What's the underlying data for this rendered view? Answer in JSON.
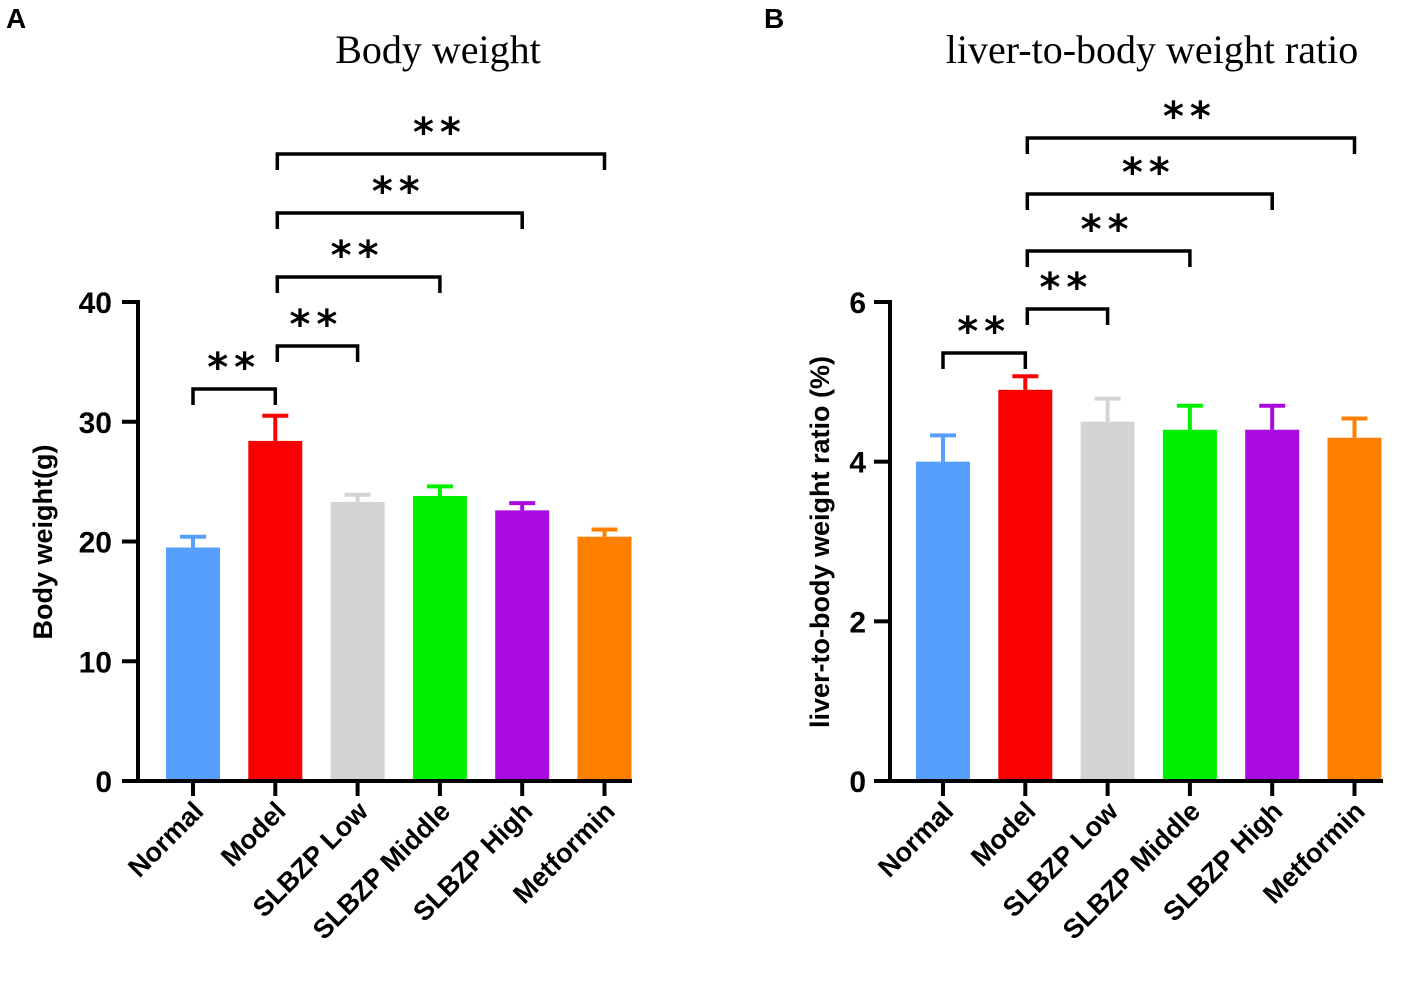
{
  "colors": {
    "Normal": "#569ffd",
    "Model": "#fa0000",
    "SLBZP Low": "#d4d4d4",
    "SLBZP Middle": "#00f000",
    "SLBZP High": "#a90add",
    "Metformin": "#ff8000"
  },
  "chart_data": [
    {
      "panel": "A",
      "type": "bar",
      "title": "Body weight",
      "xlabel": "",
      "ylabel": "Body weight(g)",
      "ylim": [
        0,
        40
      ],
      "yticks": [
        0,
        10,
        20,
        30,
        40
      ],
      "categories": [
        "Normal",
        "Model",
        "SLBZP Low",
        "SLBZP Middle",
        "SLBZP High",
        "Metformin"
      ],
      "values": [
        19.5,
        28.4,
        23.3,
        23.8,
        22.6,
        20.4
      ],
      "errors": [
        0.9,
        2.1,
        0.6,
        0.8,
        0.6,
        0.6
      ],
      "significance": [
        {
          "from": "Normal",
          "to": "Model",
          "label": "**"
        },
        {
          "from": "Model",
          "to": "SLBZP Low",
          "label": "**"
        },
        {
          "from": "Model",
          "to": "SLBZP Middle",
          "label": "**"
        },
        {
          "from": "Model",
          "to": "SLBZP High",
          "label": "**"
        },
        {
          "from": "Model",
          "to": "Metformin",
          "label": "**"
        }
      ]
    },
    {
      "panel": "B",
      "type": "bar",
      "title": "liver-to-body weight ratio",
      "xlabel": "",
      "ylabel": "liver-to-body weight ratio (%)",
      "ylim": [
        0,
        6
      ],
      "yticks": [
        0,
        2,
        4,
        6
      ],
      "categories": [
        "Normal",
        "Model",
        "SLBZP Low",
        "SLBZP Middle",
        "SLBZP High",
        "Metformin"
      ],
      "values": [
        4.0,
        4.9,
        4.5,
        4.4,
        4.4,
        4.3
      ],
      "errors": [
        0.33,
        0.17,
        0.29,
        0.3,
        0.3,
        0.24
      ],
      "significance": [
        {
          "from": "Normal",
          "to": "Model",
          "label": "**"
        },
        {
          "from": "Model",
          "to": "SLBZP Low",
          "label": "**"
        },
        {
          "from": "Model",
          "to": "SLBZP Middle",
          "label": "**"
        },
        {
          "from": "Model",
          "to": "SLBZP High",
          "label": "**"
        },
        {
          "from": "Model",
          "to": "Metformin",
          "label": "**"
        }
      ]
    }
  ]
}
